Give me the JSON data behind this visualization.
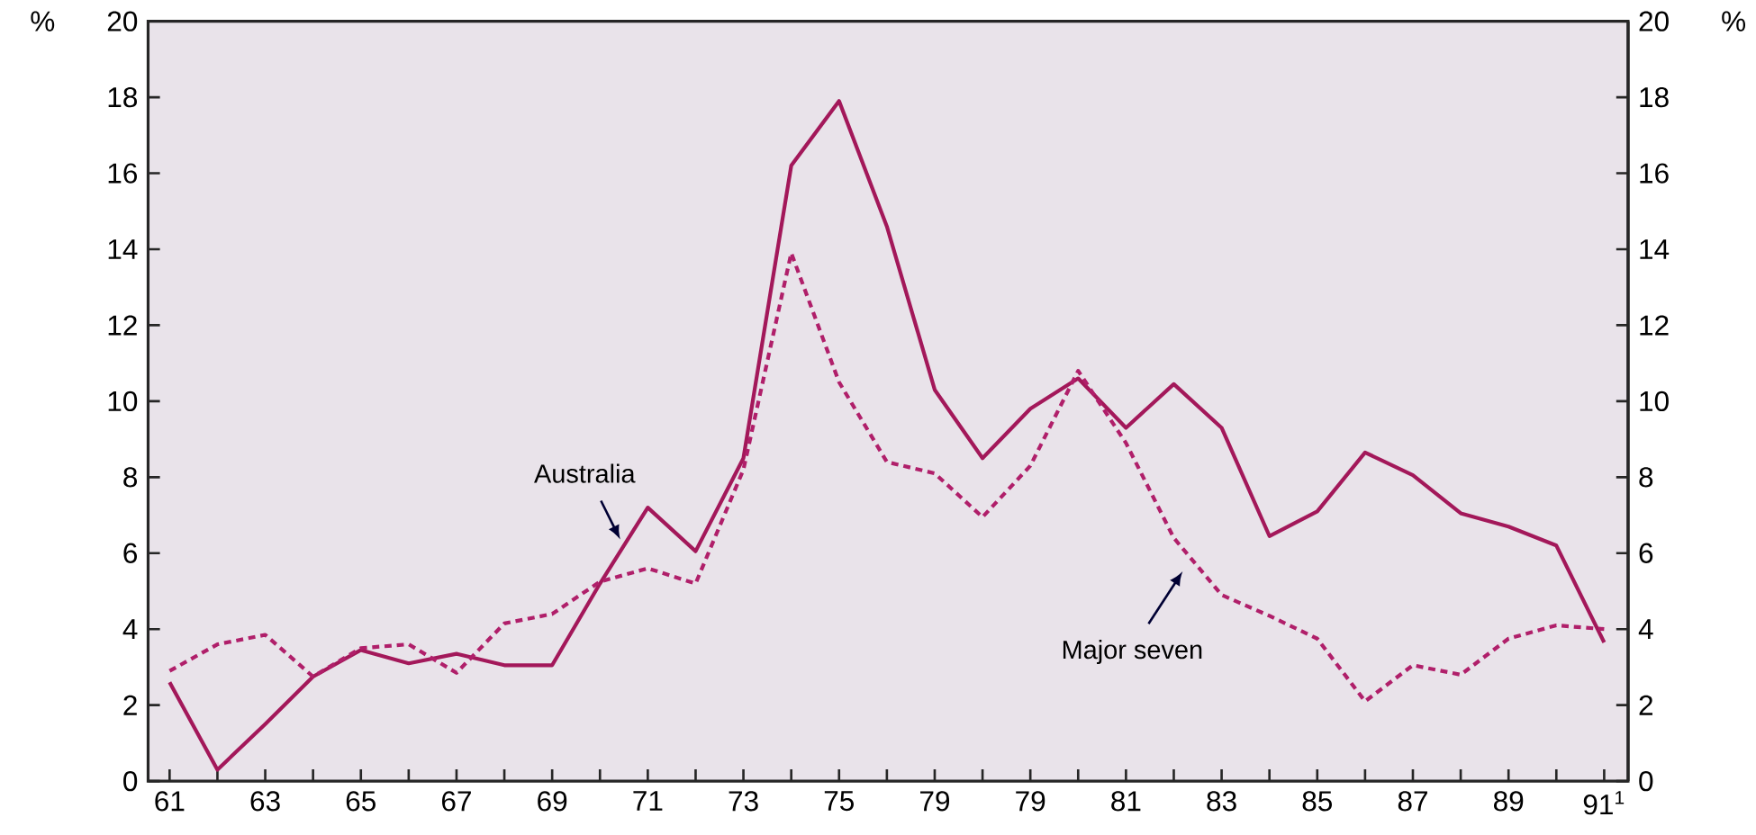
{
  "chart_data": {
    "type": "line",
    "categories": [
      "61",
      null,
      "63",
      null,
      "65",
      null,
      "67",
      null,
      "69",
      null,
      "71",
      null,
      "73",
      null,
      "75",
      null,
      "79",
      null,
      "79",
      null,
      "81",
      null,
      "83",
      null,
      "85",
      null,
      "87",
      null,
      "89",
      null,
      "91$^{1}$"
    ],
    "series": [
      {
        "name": "Australia",
        "color": "#a3185a",
        "line_style": "solid",
        "values": [
          2.6,
          0.3,
          1.5,
          2.75,
          3.45,
          3.1,
          3.35,
          3.05,
          3.05,
          5.2,
          7.2,
          6.05,
          8.5,
          16.2,
          17.9,
          14.6,
          10.3,
          8.5,
          9.8,
          10.6,
          9.3,
          10.45,
          9.3,
          6.45,
          7.1,
          8.65,
          8.05,
          7.05,
          6.7,
          6.2,
          3.65
        ]
      },
      {
        "name": "Major seven",
        "color": "#b01f6a",
        "line_style": "dashed",
        "values": [
          2.9,
          3.6,
          3.85,
          2.75,
          3.5,
          3.6,
          2.85,
          4.15,
          4.4,
          5.25,
          5.6,
          5.2,
          8.2,
          13.9,
          10.5,
          8.4,
          8.1,
          6.95,
          8.3,
          10.8,
          8.9,
          6.4,
          4.9,
          4.35,
          3.75,
          2.1,
          3.05,
          2.8,
          3.75,
          4.1,
          4.0
        ]
      }
    ],
    "ylabel": "%",
    "y2label": "%",
    "ylim": [
      0,
      20
    ],
    "yticks": [
      0,
      2,
      4,
      6,
      8,
      10,
      12,
      14,
      16,
      18,
      20
    ],
    "y2lim": [
      0,
      20
    ],
    "y2ticks": [
      0,
      2,
      4,
      6,
      8,
      10,
      12,
      14,
      16,
      18,
      20
    ],
    "grid": false,
    "legend": false,
    "marker": "none"
  }
}
